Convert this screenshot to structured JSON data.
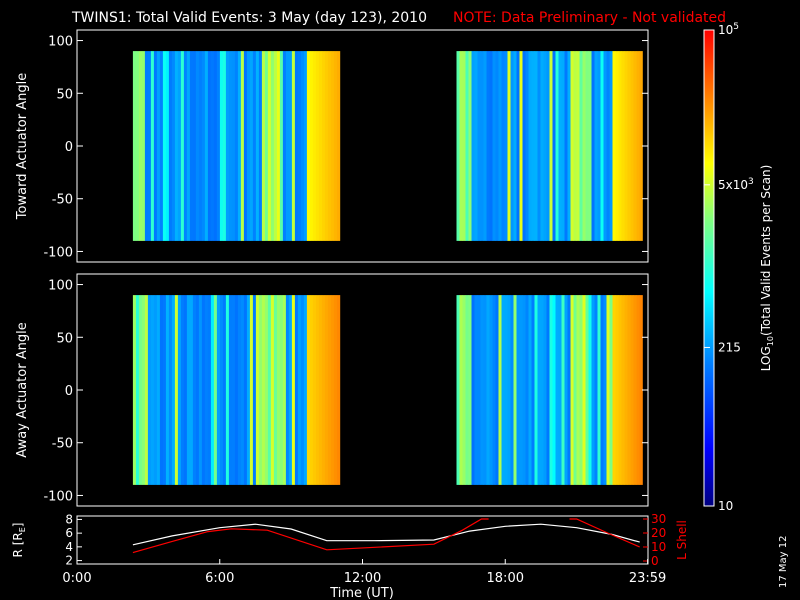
{
  "title": {
    "main": "TWINS1: Total Valid Events:  3 May (day 123), 2010",
    "note": "NOTE: Data Preliminary - Not validated",
    "note_color": "#ff0000",
    "main_color": "#ffffff"
  },
  "date_stamp": "17 May 12",
  "chart_data": [
    {
      "type": "heatmap",
      "name": "toward",
      "ylabel": "Toward Actuator Angle",
      "ylim": [
        -110,
        110
      ],
      "yticks": [
        -100,
        -50,
        0,
        50,
        100
      ],
      "xlim_hours": [
        0,
        24
      ],
      "data_blocks_hours": [
        [
          2.35,
          11.0
        ],
        [
          15.95,
          23.65
        ]
      ],
      "angle_range": [
        -90,
        90
      ],
      "column_profile": "mostly blue (~200-800 counts) with cyan/green streaks; yellow-orange near end of each block"
    },
    {
      "type": "heatmap",
      "name": "away",
      "ylabel": "Away Actuator Angle",
      "ylim": [
        -110,
        110
      ],
      "yticks": [
        -100,
        -50,
        0,
        50,
        100
      ],
      "xlim_hours": [
        0,
        24
      ],
      "data_blocks_hours": [
        [
          2.35,
          11.0
        ],
        [
          15.95,
          23.65
        ]
      ],
      "angle_range": [
        -90,
        90
      ],
      "column_profile": "mostly blue/cyan with green/yellow streaks; orange near end of each block"
    },
    {
      "type": "line",
      "name": "orbit",
      "ylabel_left_base": "R [R",
      "ylabel_left_sub": "E",
      "ylabel_left_close": "]",
      "ylabel_right": "L Shell",
      "left_ylim": [
        1.5,
        8.5
      ],
      "left_yticks": [
        2,
        4,
        6,
        8
      ],
      "right_ylim": [
        0,
        30
      ],
      "right_yticks": [
        0,
        10,
        20,
        30
      ],
      "xlabel": "Time (UT)",
      "xticks": [
        "0:00",
        "6:00",
        "12:00",
        "18:00",
        "23:59"
      ],
      "xtick_hours": [
        0,
        6,
        12,
        18,
        23.983
      ],
      "series": [
        {
          "name": "R",
          "color": "#ffffff",
          "axis": "left",
          "x": [
            2.35,
            4,
            6,
            7.5,
            9,
            10.5,
            12.5,
            15,
            16.5,
            18,
            19.5,
            21,
            22.5,
            23.65
          ],
          "y": [
            4.3,
            5.6,
            6.8,
            7.3,
            6.6,
            4.9,
            4.9,
            5.0,
            6.3,
            7.0,
            7.3,
            6.8,
            5.8,
            4.7
          ]
        },
        {
          "name": "L Shell",
          "color": "#ff0000",
          "axis": "right",
          "x": [
            2.35,
            4,
            5.5,
            6.5,
            8,
            10.5,
            15,
            16.2,
            17.0,
            17.3
          ],
          "y": [
            6,
            14,
            21,
            23,
            22,
            8,
            12,
            22,
            30,
            30
          ]
        },
        {
          "name": "L Shell seg2",
          "color": "#ff0000",
          "axis": "right",
          "x": [
            20.7,
            21,
            22.3,
            23.65
          ],
          "y": [
            30,
            30,
            20,
            10
          ]
        }
      ]
    },
    {
      "type": "colorbar",
      "label_prefix": "LOG",
      "label_sub": "10",
      "label_suffix": "(Total Valid Events per Scan)",
      "ticks": [
        {
          "label": "10",
          "value": 10
        },
        {
          "label": "215",
          "value": 215
        },
        {
          "label": "5x10",
          "sup": "3",
          "value": 5000
        },
        {
          "label": "10",
          "sup": "5",
          "value": 100000
        }
      ],
      "range": [
        10,
        100000
      ]
    }
  ]
}
